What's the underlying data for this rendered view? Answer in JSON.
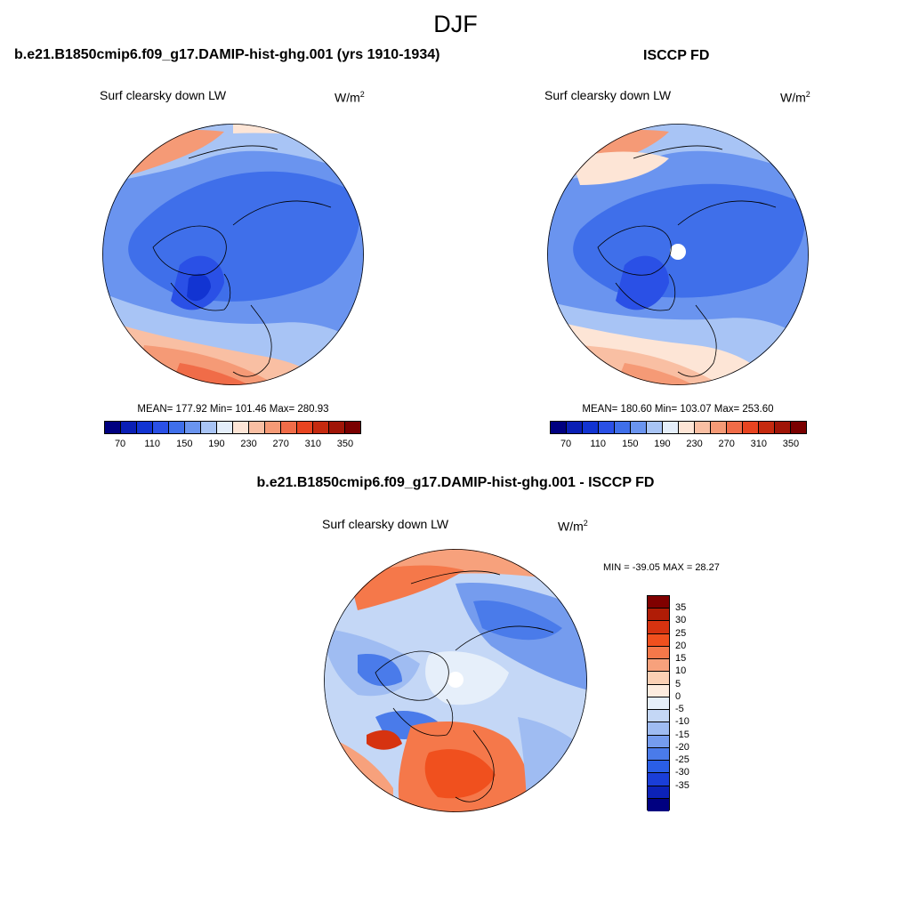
{
  "main_title": "DJF",
  "panels": [
    {
      "title": "b.e21.B1850cmip6.f09_g17.DAMIP-hist-ghg.001 (yrs 1910-1934)",
      "variable": "Surf clearsky down LW",
      "unit_base": "W/m",
      "unit_exp": "2",
      "stats": "MEAN= 177.92  Min= 101.46  Max= 280.93"
    },
    {
      "title": "ISCCP FD",
      "variable": "Surf clearsky down LW",
      "unit_base": "W/m",
      "unit_exp": "2",
      "stats": "MEAN= 180.60  Min= 103.07  Max= 253.60"
    },
    {
      "title": "b.e21.B1850cmip6.f09_g17.DAMIP-hist-ghg.001 - ISCCP FD",
      "variable": "Surf clearsky down LW",
      "unit_base": "W/m",
      "unit_exp": "2",
      "minmax": "MIN = -39.05 MAX =  28.27"
    }
  ],
  "abs_colorbar": {
    "colors": [
      "#000080",
      "#0a1fb5",
      "#1234d2",
      "#2a50e6",
      "#3f6fea",
      "#6a94ef",
      "#a8c4f5",
      "#e4eefa",
      "#fde5d6",
      "#f9bfa3",
      "#f59a76",
      "#f06c48",
      "#e84420",
      "#c52a0f",
      "#a01507",
      "#7a0000"
    ],
    "labels": [
      "70",
      "110",
      "150",
      "190",
      "230",
      "270",
      "310",
      "350"
    ]
  },
  "diff_colorbar": {
    "colors": [
      "#800000",
      "#b01c06",
      "#d63310",
      "#f0501e",
      "#f5784a",
      "#f7a17c",
      "#fbd0b4",
      "#fdecdf",
      "#e6effa",
      "#c4d7f6",
      "#9fbcf2",
      "#759cee",
      "#4a7bea",
      "#2a5ee6",
      "#1a3ed8",
      "#0c22b8",
      "#000080"
    ],
    "labels": [
      "35",
      "30",
      "25",
      "20",
      "15",
      "10",
      "5",
      "0",
      "-5",
      "-10",
      "-15",
      "-20",
      "-25",
      "-30",
      "-35"
    ]
  },
  "colors": {
    "ocean_cold": "#3f6fea",
    "ocean_mid": "#6a94ef",
    "pale": "#e4eefa",
    "warm": "#f59a76",
    "coast": "#000000"
  }
}
